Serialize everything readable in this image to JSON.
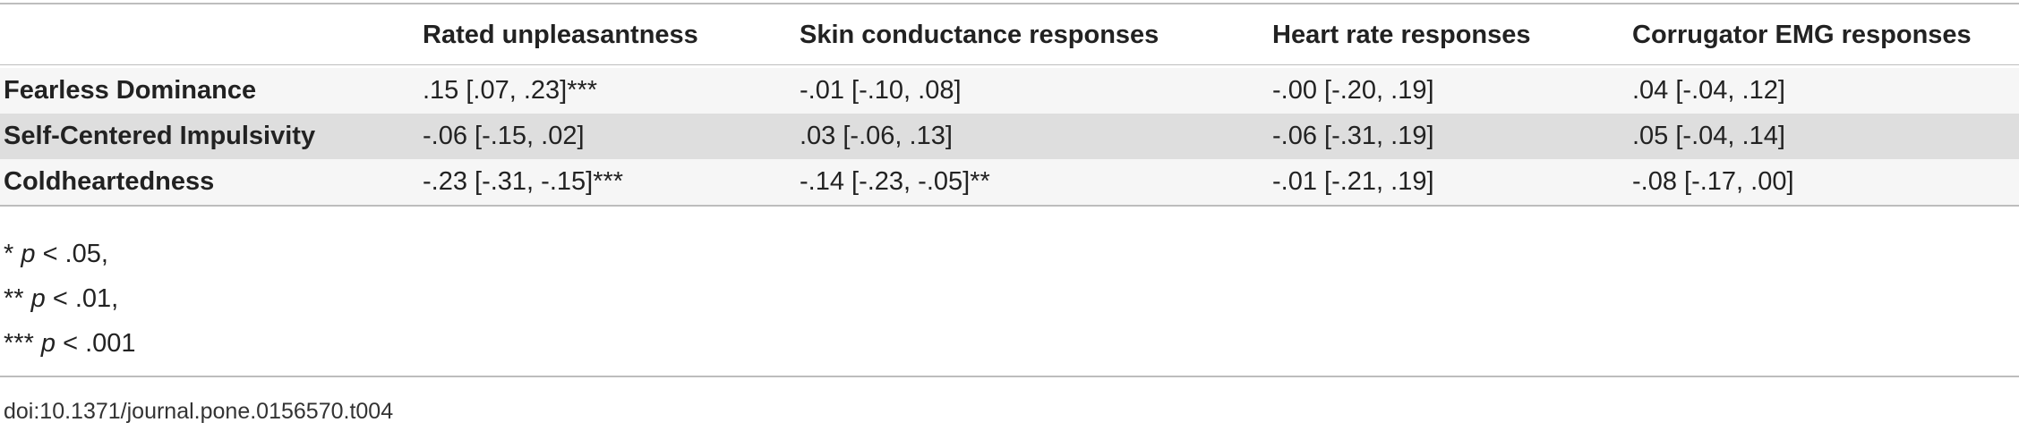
{
  "table": {
    "columns": [
      "Rated unpleasantness",
      "Skin conductance responses",
      "Heart rate responses",
      "Corrugator EMG responses"
    ],
    "rows": [
      {
        "label": "Fearless Dominance",
        "cells": [
          ".15 [.07, .23]***",
          "-.01 [-.10, .08]",
          "-.00 [-.20, .19]",
          ".04 [-.04, .12]"
        ]
      },
      {
        "label": "Self-Centered Impulsivity",
        "cells": [
          "-.06 [-.15, .02]",
          ".03 [-.06, .13]",
          "-.06 [-.31, .19]",
          ".05 [-.04, .14]"
        ]
      },
      {
        "label": "Coldheartedness",
        "cells": [
          "-.23 [-.31, -.15]***",
          "-.14 [-.23, -.05]**",
          "-.01 [-.21, .19]",
          "-.08 [-.17, .00]"
        ]
      }
    ]
  },
  "footnotes": [
    {
      "stars": "*",
      "symbol": "p",
      "rest": "< .05,"
    },
    {
      "stars": "**",
      "symbol": "p",
      "rest": "< .01,"
    },
    {
      "stars": "***",
      "symbol": "p",
      "rest": "< .001"
    }
  ],
  "doi": "doi:10.1371/journal.pone.0156570.t004"
}
